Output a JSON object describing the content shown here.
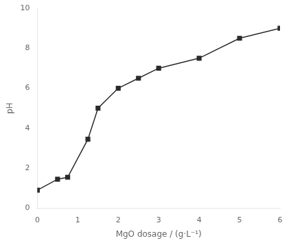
{
  "chart_data": {
    "type": "line",
    "x": [
      0,
      0.5,
      0.75,
      1.25,
      1.5,
      2.0,
      2.5,
      3.0,
      4.0,
      5.0,
      6.0
    ],
    "values": [
      0.9,
      1.45,
      1.55,
      3.45,
      5.0,
      6.0,
      6.5,
      7.0,
      7.5,
      8.5,
      9.0
    ],
    "xlabel": "MgO dosage / (g·L⁻¹)",
    "ylabel": "pH",
    "xlim": [
      0,
      6
    ],
    "ylim": [
      0,
      10
    ],
    "xticks": [
      0,
      1,
      2,
      3,
      4,
      5,
      6
    ],
    "yticks": [
      0,
      2,
      4,
      6,
      8,
      10
    ],
    "color": "#2a2a2a",
    "marker": "square",
    "grid": false
  }
}
